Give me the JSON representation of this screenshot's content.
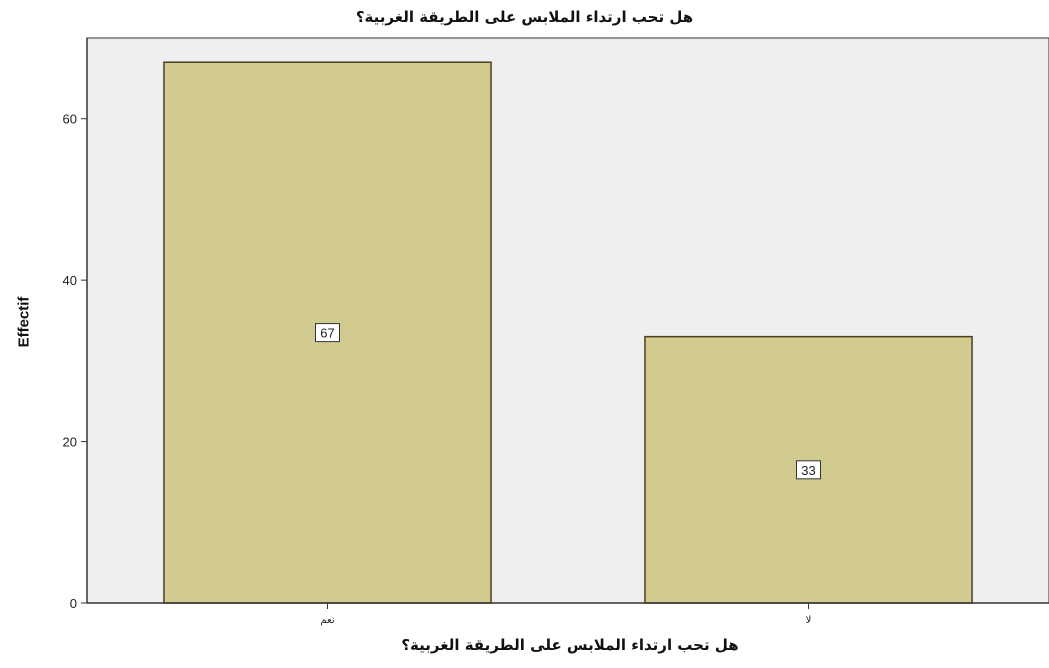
{
  "chart_data": {
    "type": "bar",
    "title": "هل تحب ارتداء الملابس على الطريقة الغربية؟",
    "xlabel": "هل تحب ارتداء الملابس على الطريقة الغربية؟",
    "ylabel": "Effectif",
    "categories": [
      "نعم",
      "لا"
    ],
    "values": [
      67,
      33
    ],
    "data_labels": [
      "67",
      "33"
    ],
    "yticks": [
      "0",
      "20",
      "40",
      "60"
    ],
    "ytick_values": [
      0,
      20,
      40,
      60
    ],
    "ylim": [
      0,
      70
    ],
    "grid": false,
    "legend": "none",
    "colors": {
      "bar_fill": "#d2cb8f",
      "bar_stroke": "#4a4022",
      "plot_background": "#efefef",
      "axis": "#333333"
    }
  }
}
